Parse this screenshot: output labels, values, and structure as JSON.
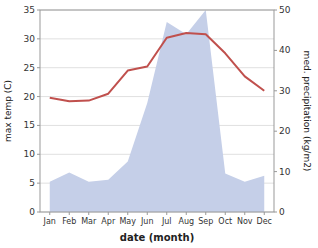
{
  "chart_data": {
    "type": "line",
    "xlabel": "date (month)",
    "ylabel": "max temp (C)",
    "y2label": "med. precipitation (kg/m2)",
    "categories": [
      "Jan",
      "Feb",
      "Mar",
      "Apr",
      "May",
      "Jun",
      "Jul",
      "Aug",
      "Sep",
      "Oct",
      "Nov",
      "Dec"
    ],
    "series": [
      {
        "type": "area",
        "axis": "y2",
        "color": "#c5cfe8",
        "values": [
          7.5,
          9.8,
          7.5,
          8.0,
          12.5,
          27.0,
          47.0,
          44.0,
          50.0,
          9.5,
          7.5,
          9.0
        ]
      },
      {
        "type": "line",
        "color": "#c0504d",
        "values": [
          19.8,
          19.2,
          19.3,
          20.5,
          24.5,
          25.2,
          30.2,
          31.0,
          30.8,
          27.5,
          23.5,
          21.0
        ]
      }
    ],
    "ylim": [
      0,
      35
    ],
    "yticks": [
      0,
      5,
      10,
      15,
      20,
      25,
      30,
      35
    ],
    "y2lim": [
      0,
      50
    ],
    "y2ticks": [
      0,
      10,
      20,
      30,
      40,
      50
    ],
    "grid": true
  }
}
